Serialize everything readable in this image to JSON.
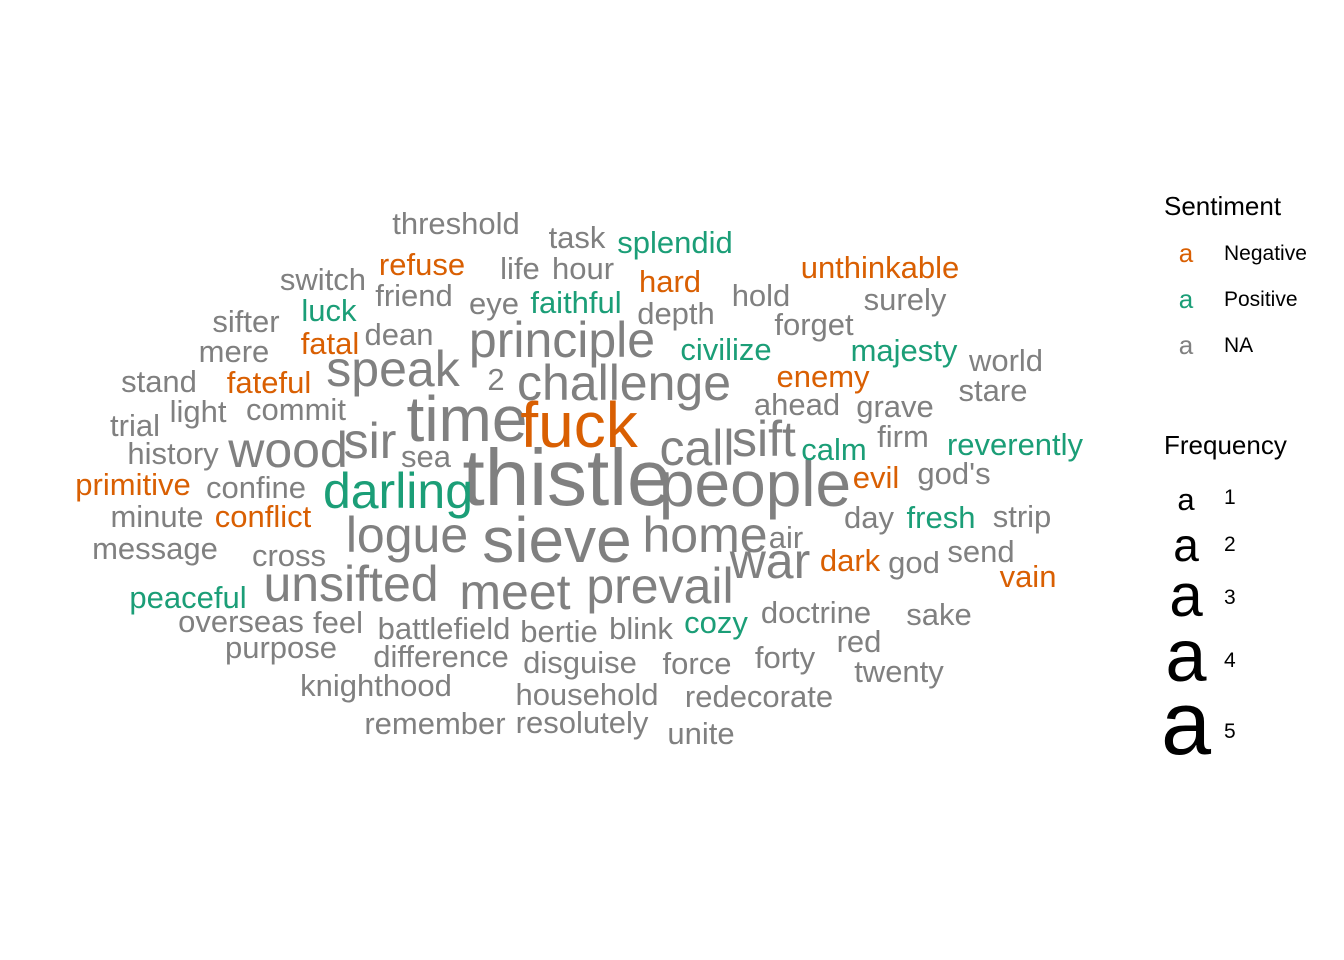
{
  "chart_data": {
    "type": "wordcloud",
    "colors": {
      "Negative": "#d95f02",
      "Positive": "#1b9e77",
      "NA": "#808080"
    },
    "words": [
      {
        "word": "thistle",
        "freq": 5,
        "sentiment": "NA"
      },
      {
        "word": "sieve",
        "freq": 4,
        "sentiment": "NA"
      },
      {
        "word": "time",
        "freq": 4,
        "sentiment": "NA"
      },
      {
        "word": "fuck",
        "freq": 4,
        "sentiment": "Negative"
      },
      {
        "word": "people",
        "freq": 4,
        "sentiment": "NA"
      },
      {
        "word": "darling",
        "freq": 3,
        "sentiment": "Positive"
      },
      {
        "word": "principle",
        "freq": 3,
        "sentiment": "NA"
      },
      {
        "word": "challenge",
        "freq": 3,
        "sentiment": "NA"
      },
      {
        "word": "speak",
        "freq": 3,
        "sentiment": "NA"
      },
      {
        "word": "logue",
        "freq": 3,
        "sentiment": "NA"
      },
      {
        "word": "unsifted",
        "freq": 3,
        "sentiment": "NA"
      },
      {
        "word": "meet",
        "freq": 3,
        "sentiment": "NA"
      },
      {
        "word": "prevail",
        "freq": 3,
        "sentiment": "NA"
      },
      {
        "word": "home",
        "freq": 3,
        "sentiment": "NA"
      },
      {
        "word": "war",
        "freq": 3,
        "sentiment": "NA"
      },
      {
        "word": "wood",
        "freq": 3,
        "sentiment": "NA"
      },
      {
        "word": "sir",
        "freq": 3,
        "sentiment": "NA"
      },
      {
        "word": "call",
        "freq": 3,
        "sentiment": "NA"
      },
      {
        "word": "sift",
        "freq": 3,
        "sentiment": "NA"
      },
      {
        "word": "threshold",
        "freq": 1,
        "sentiment": "NA"
      },
      {
        "word": "task",
        "freq": 1,
        "sentiment": "NA"
      },
      {
        "word": "splendid",
        "freq": 1,
        "sentiment": "Positive"
      },
      {
        "word": "refuse",
        "freq": 1,
        "sentiment": "Negative"
      },
      {
        "word": "life",
        "freq": 1,
        "sentiment": "NA"
      },
      {
        "word": "hour",
        "freq": 1,
        "sentiment": "NA"
      },
      {
        "word": "hard",
        "freq": 1,
        "sentiment": "Negative"
      },
      {
        "word": "unthinkable",
        "freq": 1,
        "sentiment": "Negative"
      },
      {
        "word": "switch",
        "freq": 1,
        "sentiment": "NA"
      },
      {
        "word": "friend",
        "freq": 1,
        "sentiment": "NA"
      },
      {
        "word": "eye",
        "freq": 1,
        "sentiment": "NA"
      },
      {
        "word": "faithful",
        "freq": 1,
        "sentiment": "Positive"
      },
      {
        "word": "hold",
        "freq": 1,
        "sentiment": "NA"
      },
      {
        "word": "surely",
        "freq": 1,
        "sentiment": "NA"
      },
      {
        "word": "sifter",
        "freq": 1,
        "sentiment": "NA"
      },
      {
        "word": "luck",
        "freq": 1,
        "sentiment": "Positive"
      },
      {
        "word": "depth",
        "freq": 1,
        "sentiment": "NA"
      },
      {
        "word": "forget",
        "freq": 1,
        "sentiment": "NA"
      },
      {
        "word": "dean",
        "freq": 1,
        "sentiment": "NA"
      },
      {
        "word": "mere",
        "freq": 1,
        "sentiment": "NA"
      },
      {
        "word": "fatal",
        "freq": 1,
        "sentiment": "Negative"
      },
      {
        "word": "civilize",
        "freq": 1,
        "sentiment": "Positive"
      },
      {
        "word": "majesty",
        "freq": 1,
        "sentiment": "Positive"
      },
      {
        "word": "world",
        "freq": 1,
        "sentiment": "NA"
      },
      {
        "word": "stand",
        "freq": 1,
        "sentiment": "NA"
      },
      {
        "word": "fateful",
        "freq": 1,
        "sentiment": "Negative"
      },
      {
        "word": "2",
        "freq": 1,
        "sentiment": "NA"
      },
      {
        "word": "enemy",
        "freq": 1,
        "sentiment": "Negative"
      },
      {
        "word": "stare",
        "freq": 1,
        "sentiment": "NA"
      },
      {
        "word": "trial",
        "freq": 1,
        "sentiment": "NA"
      },
      {
        "word": "light",
        "freq": 1,
        "sentiment": "NA"
      },
      {
        "word": "commit",
        "freq": 1,
        "sentiment": "NA"
      },
      {
        "word": "ahead",
        "freq": 1,
        "sentiment": "NA"
      },
      {
        "word": "grave",
        "freq": 1,
        "sentiment": "NA"
      },
      {
        "word": "history",
        "freq": 1,
        "sentiment": "NA"
      },
      {
        "word": "sea",
        "freq": 1,
        "sentiment": "NA"
      },
      {
        "word": "firm",
        "freq": 1,
        "sentiment": "NA"
      },
      {
        "word": "calm",
        "freq": 1,
        "sentiment": "Positive"
      },
      {
        "word": "reverently",
        "freq": 1,
        "sentiment": "Positive"
      },
      {
        "word": "primitive",
        "freq": 1,
        "sentiment": "Negative"
      },
      {
        "word": "confine",
        "freq": 1,
        "sentiment": "NA"
      },
      {
        "word": "evil",
        "freq": 1,
        "sentiment": "Negative"
      },
      {
        "word": "god's",
        "freq": 1,
        "sentiment": "NA"
      },
      {
        "word": "minute",
        "freq": 1,
        "sentiment": "NA"
      },
      {
        "word": "conflict",
        "freq": 1,
        "sentiment": "Negative"
      },
      {
        "word": "day",
        "freq": 1,
        "sentiment": "NA"
      },
      {
        "word": "fresh",
        "freq": 1,
        "sentiment": "Positive"
      },
      {
        "word": "strip",
        "freq": 1,
        "sentiment": "NA"
      },
      {
        "word": "air",
        "freq": 1,
        "sentiment": "NA"
      },
      {
        "word": "message",
        "freq": 1,
        "sentiment": "NA"
      },
      {
        "word": "cross",
        "freq": 1,
        "sentiment": "NA"
      },
      {
        "word": "dark",
        "freq": 1,
        "sentiment": "Negative"
      },
      {
        "word": "god",
        "freq": 1,
        "sentiment": "NA"
      },
      {
        "word": "send",
        "freq": 1,
        "sentiment": "NA"
      },
      {
        "word": "vain",
        "freq": 1,
        "sentiment": "Negative"
      },
      {
        "word": "peaceful",
        "freq": 1,
        "sentiment": "Positive"
      },
      {
        "word": "doctrine",
        "freq": 1,
        "sentiment": "NA"
      },
      {
        "word": "sake",
        "freq": 1,
        "sentiment": "NA"
      },
      {
        "word": "overseas",
        "freq": 1,
        "sentiment": "NA"
      },
      {
        "word": "feel",
        "freq": 1,
        "sentiment": "NA"
      },
      {
        "word": "battlefield",
        "freq": 1,
        "sentiment": "NA"
      },
      {
        "word": "bertie",
        "freq": 1,
        "sentiment": "NA"
      },
      {
        "word": "blink",
        "freq": 1,
        "sentiment": "NA"
      },
      {
        "word": "cozy",
        "freq": 1,
        "sentiment": "Positive"
      },
      {
        "word": "red",
        "freq": 1,
        "sentiment": "NA"
      },
      {
        "word": "purpose",
        "freq": 1,
        "sentiment": "NA"
      },
      {
        "word": "difference",
        "freq": 1,
        "sentiment": "NA"
      },
      {
        "word": "disguise",
        "freq": 1,
        "sentiment": "NA"
      },
      {
        "word": "force",
        "freq": 1,
        "sentiment": "NA"
      },
      {
        "word": "forty",
        "freq": 1,
        "sentiment": "NA"
      },
      {
        "word": "twenty",
        "freq": 1,
        "sentiment": "NA"
      },
      {
        "word": "knighthood",
        "freq": 1,
        "sentiment": "NA"
      },
      {
        "word": "household",
        "freq": 1,
        "sentiment": "NA"
      },
      {
        "word": "redecorate",
        "freq": 1,
        "sentiment": "NA"
      },
      {
        "word": "remember",
        "freq": 1,
        "sentiment": "NA"
      },
      {
        "word": "resolutely",
        "freq": 1,
        "sentiment": "NA"
      },
      {
        "word": "unite",
        "freq": 1,
        "sentiment": "NA"
      }
    ],
    "legend": {
      "sentiment_title": "Sentiment",
      "sentiment_glyph": "a",
      "sentiment_items": [
        {
          "label": "Negative",
          "color": "#d95f02"
        },
        {
          "label": "Positive",
          "color": "#1b9e77"
        },
        {
          "label": "NA",
          "color": "#808080"
        }
      ],
      "frequency_title": "Frequency",
      "frequency_glyph": "a",
      "frequency_items": [
        "1",
        "2",
        "3",
        "4",
        "5"
      ]
    }
  }
}
